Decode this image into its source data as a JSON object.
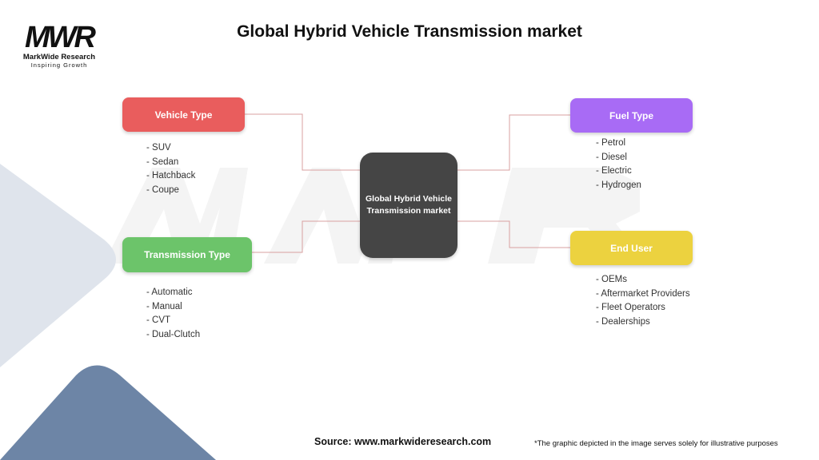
{
  "title": "Global Hybrid Vehicle Transmission market",
  "logo": {
    "mark": "MWR",
    "name": "MarkWide Research",
    "tagline": "Inspiring Growth"
  },
  "center": {
    "label": "Global Hybrid Vehicle Transmission market",
    "color": "#454545"
  },
  "categories": [
    {
      "label": "Vehicle Type",
      "color": "#e95d5d",
      "items": [
        "- SUV",
        "- Sedan",
        "- Hatchback",
        "- Coupe"
      ]
    },
    {
      "label": "Transmission Type",
      "color": "#6cc46a",
      "items": [
        "- Automatic",
        "- Manual",
        "- CVT",
        "- Dual-Clutch"
      ]
    },
    {
      "label": "Fuel Type",
      "color": "#a86bf5",
      "items": [
        "- Petrol",
        "- Diesel",
        "- Electric",
        "- Hydrogen"
      ]
    },
    {
      "label": "End User",
      "color": "#ecd23f",
      "items": [
        "- OEMs",
        "- Aftermarket Providers",
        "- Fleet Operators",
        "- Dealerships"
      ]
    }
  ],
  "connector_color": "#d9a0a0",
  "footer": {
    "source": "Source: www.markwideresearch.com",
    "note": "*The graphic depicted in the image serves solely for illustrative purposes"
  }
}
